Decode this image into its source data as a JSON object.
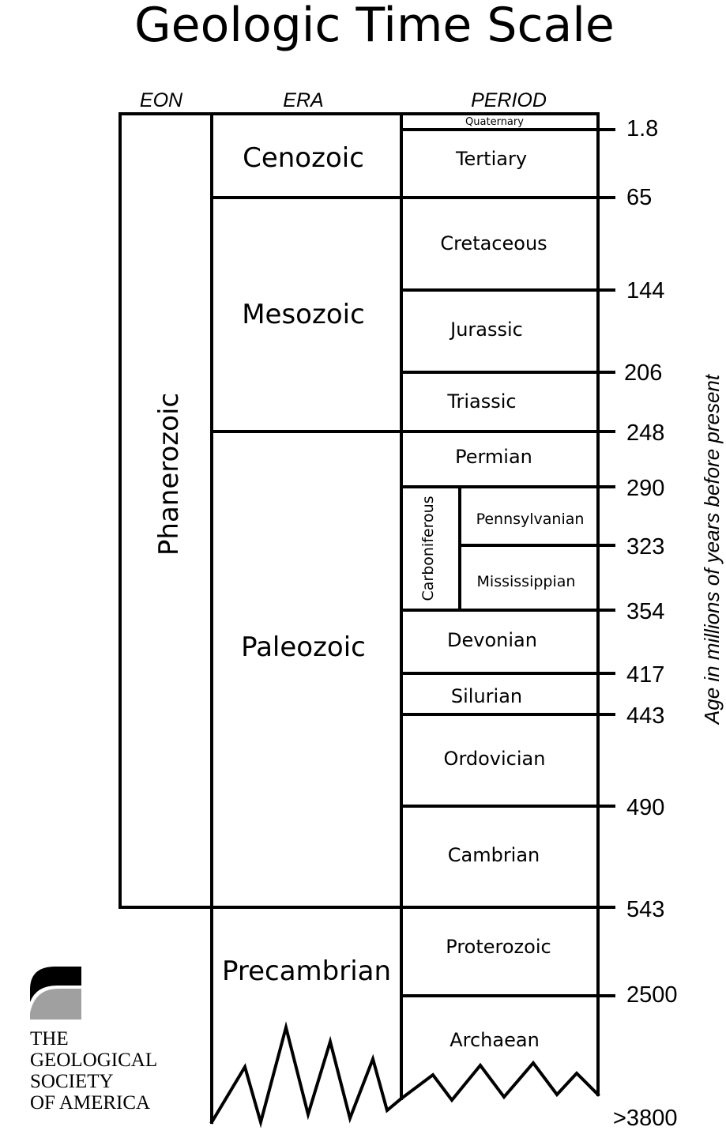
{
  "title": "Geologic Time Scale",
  "columns": {
    "eon": "EON",
    "era": "ERA",
    "period": "PERIOD"
  },
  "axis_label": "Age in millions of years before present",
  "eon": "Phanerozoic",
  "eras": {
    "cenozoic": "Cenozoic",
    "mesozoic": "Mesozoic",
    "paleozoic": "Paleozoic",
    "precambrian": "Precambrian"
  },
  "periods": {
    "quaternary": "Quaternary",
    "tertiary": "Tertiary",
    "cretaceous": "Cretaceous",
    "jurassic": "Jurassic",
    "triassic": "Triassic",
    "permian": "Permian",
    "carboniferous": "Carboniferous",
    "pennsylvanian": "Pennsylvanian",
    "mississippian": "Mississippian",
    "devonian": "Devonian",
    "silurian": "Silurian",
    "ordovician": "Ordovician",
    "cambrian": "Cambrian",
    "proterozoic": "Proterozoic",
    "archaean": "Archaean"
  },
  "ages": [
    "1.8",
    "65",
    "144",
    "206",
    "248",
    "290",
    "323",
    "354",
    "417",
    "443",
    "490",
    "543",
    "2500"
  ],
  "oldest_age": ">3800",
  "publisher": {
    "line1": "THE",
    "line2": "GEOLOGICAL",
    "line3": "SOCIETY",
    "line4": "OF AMERICA",
    "logo": "gsa-logo"
  }
}
